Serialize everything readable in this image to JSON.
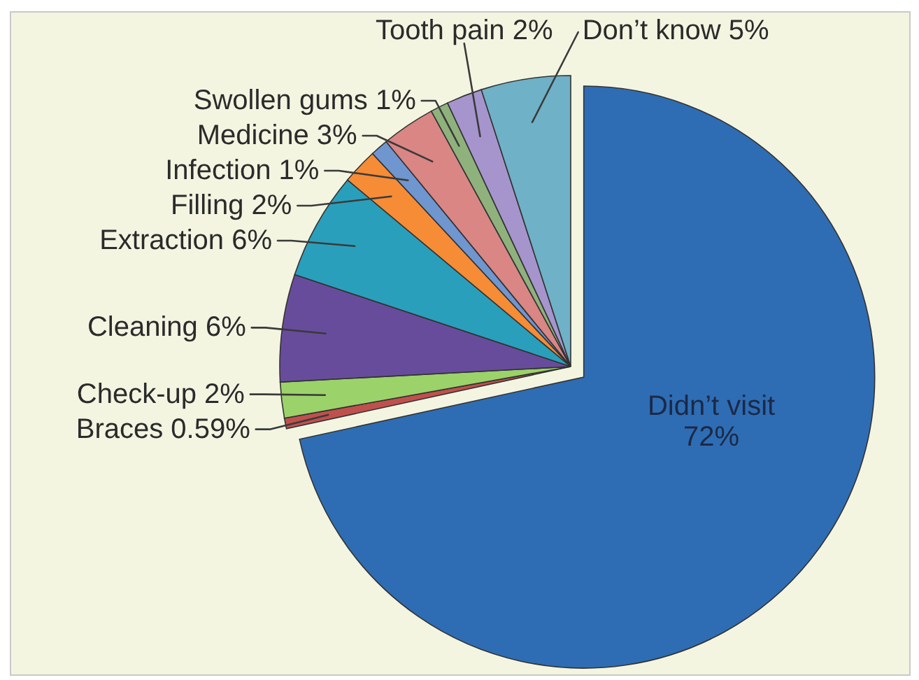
{
  "chart_data": {
    "type": "pie",
    "categories": [
      "Didn’t visit",
      "Braces",
      "Check-up",
      "Cleaning",
      "Extraction",
      "Filling",
      "Infection",
      "Medicine",
      "Swollen gums",
      "Tooth pain",
      "Don’t know"
    ],
    "values": [
      72,
      0.59,
      2,
      6,
      6,
      2,
      1,
      3,
      1,
      2,
      5
    ],
    "value_labels": [
      "72%",
      "0.59%",
      "2%",
      "6%",
      "6%",
      "2%",
      "1%",
      "3%",
      "1%",
      "2%",
      "5%"
    ],
    "colors": [
      "#2e6db4",
      "#c0504d",
      "#9bd26a",
      "#684c9c",
      "#2a9fbb",
      "#f68c36",
      "#6f96cf",
      "#d98685",
      "#8fb27c",
      "#a595cc",
      "#6fb1c7"
    ]
  }
}
